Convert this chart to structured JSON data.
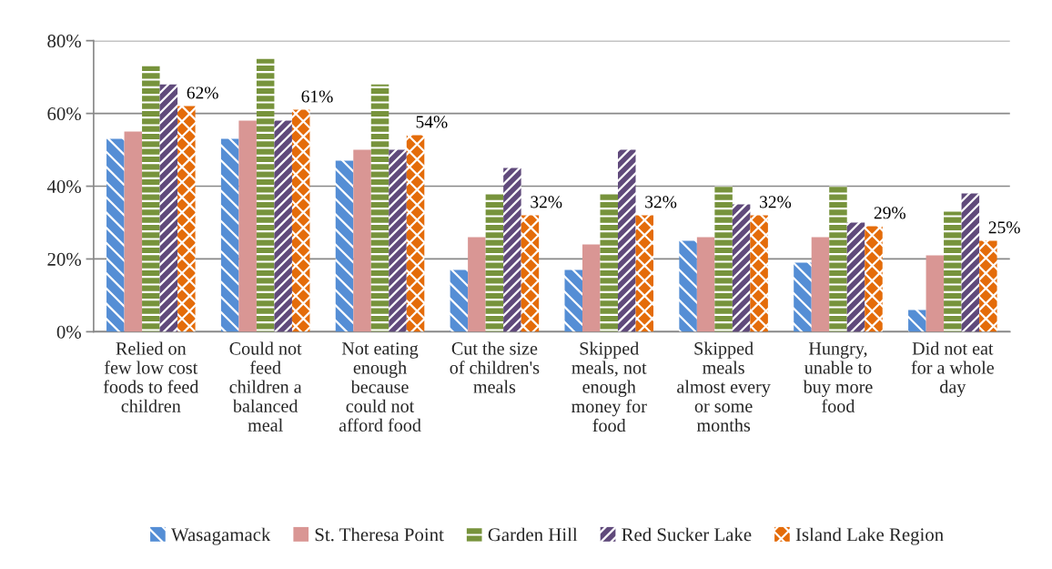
{
  "chart_data": {
    "type": "bar",
    "categories": [
      "Relied on\nfew low cost\nfoods to feed\nchildren",
      "Could not\nfeed\nchildren a\nbalanced\nmeal",
      "Not eating\nenough\nbecause\ncould not\nafford food",
      "Cut the size\nof children's\nmeals",
      "Skipped\nmeals, not\nenough\nmoney for\nfood",
      "Skipped\nmeals\nalmost every\nor some\nmonths",
      "Hungry,\nunable to\nbuy more\nfood",
      "Did not eat\nfor a whole\nday"
    ],
    "series": [
      {
        "name": "Wasagamack",
        "color": "#558ed5",
        "values": [
          53,
          53,
          47,
          17,
          17,
          25,
          19,
          6
        ]
      },
      {
        "name": "St. Theresa Point",
        "color": "#d99694",
        "values": [
          55,
          58,
          50,
          26,
          24,
          26,
          26,
          21
        ]
      },
      {
        "name": "Garden Hill",
        "color": "#77933c",
        "values": [
          73,
          75,
          68,
          38,
          38,
          40,
          40,
          33
        ]
      },
      {
        "name": "Red Sucker Lake",
        "color": "#604a7b",
        "values": [
          68,
          58,
          50,
          45,
          50,
          35,
          30,
          38
        ]
      },
      {
        "name": "Island Lake Region",
        "color": "#e46c0a",
        "values": [
          62,
          61,
          54,
          32,
          32,
          32,
          29,
          25
        ],
        "value_labels": [
          "62%",
          "61%",
          "54%",
          "32%",
          "32%",
          "32%",
          "29%",
          "25%"
        ]
      }
    ],
    "ylim": [
      0,
      80
    ],
    "yticks": [
      {
        "value": 0,
        "label": "0%"
      },
      {
        "value": 20,
        "label": "20%"
      },
      {
        "value": 40,
        "label": "40%"
      },
      {
        "value": 60,
        "label": "60%"
      },
      {
        "value": 80,
        "label": "80%"
      }
    ],
    "grid": "y",
    "legend": "bottom"
  }
}
